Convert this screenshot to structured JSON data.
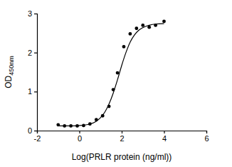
{
  "chart_data": {
    "type": "scatter",
    "x_label": "Log(PRLR protein (ng/ml))",
    "y_label": "OD450nm",
    "xlim": [
      -2,
      6
    ],
    "xticks": [
      -2,
      0,
      2,
      4,
      6
    ],
    "ylim": [
      0,
      3
    ],
    "yticks": [
      0,
      1,
      2,
      3
    ],
    "grid": false,
    "series": [
      {
        "type": "scatter",
        "marker": "circle",
        "color": "#000000",
        "x": [
          -1,
          -0.7,
          -0.4,
          -0.1,
          0.2,
          0.5,
          0.8,
          1.1,
          1.4,
          1.6,
          1.8,
          2.1,
          2.4,
          2.7,
          3.0,
          3.3,
          3.6,
          4.0
        ],
        "values": [
          0.15,
          0.12,
          0.12,
          0.12,
          0.13,
          0.17,
          0.28,
          0.38,
          0.62,
          1.05,
          1.48,
          2.15,
          2.48,
          2.62,
          2.7,
          2.65,
          2.7,
          2.8
        ]
      },
      {
        "type": "line",
        "line_style": "solid",
        "color": "#000000",
        "x": [
          -1,
          -0.5,
          0,
          0.5,
          0.8,
          1.0,
          1.2,
          1.4,
          1.6,
          1.8,
          2.0,
          2.2,
          2.4,
          2.6,
          2.8,
          3.0,
          3.3,
          3.6,
          4.0
        ],
        "values": [
          0.12,
          0.12,
          0.13,
          0.17,
          0.24,
          0.33,
          0.47,
          0.68,
          0.96,
          1.3,
          1.67,
          2.0,
          2.27,
          2.45,
          2.57,
          2.64,
          2.7,
          2.73,
          2.74
        ]
      }
    ]
  }
}
